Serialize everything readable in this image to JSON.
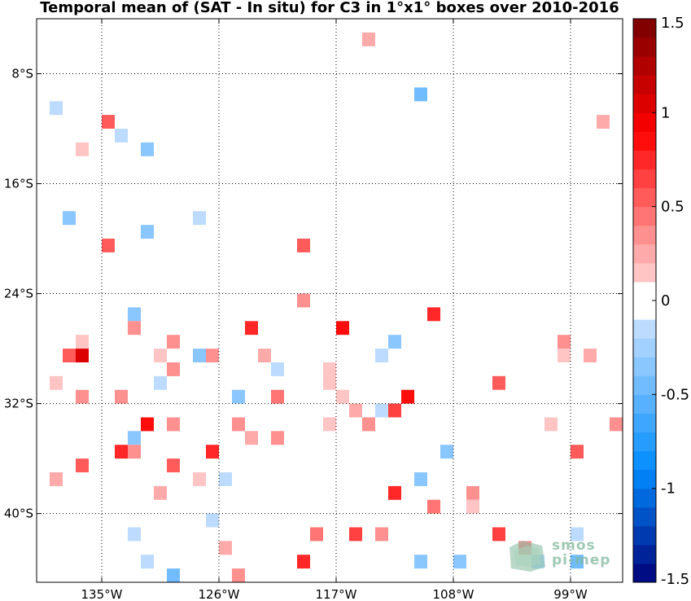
{
  "chart_data": {
    "type": "heatmap",
    "title": "Temporal mean of (SAT - In situ) for C3 in 1°x1° boxes over 2010-2016",
    "xlim": [
      -140,
      -95
    ],
    "ylim": [
      -45,
      -4
    ],
    "x_ticks": [
      -135,
      -126,
      -117,
      -108,
      -99
    ],
    "x_tick_labels": [
      "135°W",
      "126°W",
      "117°W",
      "108°W",
      "99°W"
    ],
    "y_ticks": [
      -8,
      -16,
      -24,
      -32,
      -40
    ],
    "y_tick_labels": [
      "8°S",
      "16°S",
      "24°S",
      "32°S",
      "40°S"
    ],
    "grid": true,
    "colorbar": {
      "min": -1.5,
      "max": 1.5,
      "levels": 30,
      "ticks": [
        1.5,
        1,
        0.5,
        0,
        -0.5,
        -1,
        -1.5
      ],
      "tick_labels": [
        "1.5",
        "1",
        "0.5",
        "0",
        "-0.5",
        "-1",
        "-1.5"
      ]
    },
    "cells": [
      {
        "lon": -114.5,
        "lat": -5.5,
        "v": 0.25
      },
      {
        "lon": -110.5,
        "lat": -9.5,
        "v": -0.45
      },
      {
        "lon": -138.5,
        "lat": -10.5,
        "v": -0.1
      },
      {
        "lon": -96.5,
        "lat": -11.5,
        "v": 0.2
      },
      {
        "lon": -134.5,
        "lat": -11.5,
        "v": 0.55
      },
      {
        "lon": -133.5,
        "lat": -12.5,
        "v": -0.1
      },
      {
        "lon": -136.5,
        "lat": -13.5,
        "v": 0.15
      },
      {
        "lon": -131.5,
        "lat": -13.5,
        "v": -0.3
      },
      {
        "lon": -137.5,
        "lat": -18.5,
        "v": -0.35
      },
      {
        "lon": -127.5,
        "lat": -18.5,
        "v": -0.2
      },
      {
        "lon": -131.5,
        "lat": -19.5,
        "v": -0.3
      },
      {
        "lon": -134.5,
        "lat": -20.5,
        "v": 0.55
      },
      {
        "lon": -119.5,
        "lat": -20.5,
        "v": 0.55
      },
      {
        "lon": -119.5,
        "lat": -24.5,
        "v": 0.3
      },
      {
        "lon": -132.5,
        "lat": -25.5,
        "v": -0.3
      },
      {
        "lon": -109.5,
        "lat": -25.5,
        "v": 0.75
      },
      {
        "lon": -132.5,
        "lat": -26.5,
        "v": 0.3
      },
      {
        "lon": -123.5,
        "lat": -26.5,
        "v": 0.7
      },
      {
        "lon": -116.5,
        "lat": -26.5,
        "v": 0.85
      },
      {
        "lon": -136.5,
        "lat": -27.5,
        "v": 0.15
      },
      {
        "lon": -129.5,
        "lat": -27.5,
        "v": 0.35
      },
      {
        "lon": -112.5,
        "lat": -27.5,
        "v": -0.3
      },
      {
        "lon": -99.5,
        "lat": -27.5,
        "v": 0.35
      },
      {
        "lon": -137.5,
        "lat": -28.5,
        "v": 0.5
      },
      {
        "lon": -136.5,
        "lat": -28.5,
        "v": 1.0
      },
      {
        "lon": -130.5,
        "lat": -28.5,
        "v": 0.15
      },
      {
        "lon": -127.5,
        "lat": -28.5,
        "v": -0.3
      },
      {
        "lon": -126.5,
        "lat": -28.5,
        "v": 0.3
      },
      {
        "lon": -122.5,
        "lat": -28.5,
        "v": 0.2
      },
      {
        "lon": -113.5,
        "lat": -28.5,
        "v": -0.1
      },
      {
        "lon": -99.5,
        "lat": -28.5,
        "v": 0.15
      },
      {
        "lon": -97.5,
        "lat": -28.5,
        "v": 0.2
      },
      {
        "lon": -129.5,
        "lat": -29.5,
        "v": 0.4
      },
      {
        "lon": -121.5,
        "lat": -29.5,
        "v": -0.15
      },
      {
        "lon": -117.5,
        "lat": -29.5,
        "v": 0.15
      },
      {
        "lon": -138.5,
        "lat": -30.5,
        "v": 0.15
      },
      {
        "lon": -130.5,
        "lat": -30.5,
        "v": -0.1
      },
      {
        "lon": -117.5,
        "lat": -30.5,
        "v": 0.15
      },
      {
        "lon": -104.5,
        "lat": -30.5,
        "v": 0.5
      },
      {
        "lon": -136.5,
        "lat": -31.5,
        "v": 0.4
      },
      {
        "lon": -133.5,
        "lat": -31.5,
        "v": 0.3
      },
      {
        "lon": -124.5,
        "lat": -31.5,
        "v": -0.3
      },
      {
        "lon": -121.5,
        "lat": -31.5,
        "v": 0.45
      },
      {
        "lon": -116.5,
        "lat": -31.5,
        "v": 0.15
      },
      {
        "lon": -111.5,
        "lat": -31.5,
        "v": 0.85
      },
      {
        "lon": -115.5,
        "lat": -32.5,
        "v": 0.2
      },
      {
        "lon": -113.5,
        "lat": -32.5,
        "v": -0.15
      },
      {
        "lon": -112.5,
        "lat": -32.5,
        "v": 0.65
      },
      {
        "lon": -131.5,
        "lat": -33.5,
        "v": 0.85
      },
      {
        "lon": -129.5,
        "lat": -33.5,
        "v": 0.35
      },
      {
        "lon": -124.5,
        "lat": -33.5,
        "v": 0.3
      },
      {
        "lon": -117.5,
        "lat": -33.5,
        "v": 0.15
      },
      {
        "lon": -114.5,
        "lat": -33.5,
        "v": 0.3
      },
      {
        "lon": -100.5,
        "lat": -33.5,
        "v": 0.15
      },
      {
        "lon": -95.5,
        "lat": -33.5,
        "v": 0.4
      },
      {
        "lon": -132.5,
        "lat": -34.5,
        "v": -0.35
      },
      {
        "lon": -123.5,
        "lat": -34.5,
        "v": 0.2
      },
      {
        "lon": -121.5,
        "lat": -34.5,
        "v": 0.35
      },
      {
        "lon": -133.5,
        "lat": -35.5,
        "v": 0.7
      },
      {
        "lon": -132.5,
        "lat": -35.5,
        "v": 0.35
      },
      {
        "lon": -126.5,
        "lat": -35.5,
        "v": 0.75
      },
      {
        "lon": -108.5,
        "lat": -35.5,
        "v": -0.35
      },
      {
        "lon": -98.5,
        "lat": -35.5,
        "v": 0.55
      },
      {
        "lon": -136.5,
        "lat": -36.5,
        "v": 0.55
      },
      {
        "lon": -129.5,
        "lat": -36.5,
        "v": 0.55
      },
      {
        "lon": -138.5,
        "lat": -37.5,
        "v": 0.2
      },
      {
        "lon": -127.5,
        "lat": -37.5,
        "v": 0.15
      },
      {
        "lon": -125.5,
        "lat": -37.5,
        "v": -0.2
      },
      {
        "lon": -110.5,
        "lat": -37.5,
        "v": -0.3
      },
      {
        "lon": -130.5,
        "lat": -38.5,
        "v": 0.2
      },
      {
        "lon": -112.5,
        "lat": -38.5,
        "v": 0.75
      },
      {
        "lon": -106.5,
        "lat": -38.5,
        "v": 0.35
      },
      {
        "lon": -109.5,
        "lat": -39.5,
        "v": 0.45
      },
      {
        "lon": -106.5,
        "lat": -39.5,
        "v": 0.15
      },
      {
        "lon": -126.5,
        "lat": -40.5,
        "v": -0.15
      },
      {
        "lon": -132.5,
        "lat": -41.5,
        "v": -0.15
      },
      {
        "lon": -118.5,
        "lat": -41.5,
        "v": 0.45
      },
      {
        "lon": -115.5,
        "lat": -41.5,
        "v": 0.6
      },
      {
        "lon": -113.5,
        "lat": -41.5,
        "v": 0.35
      },
      {
        "lon": -104.5,
        "lat": -41.5,
        "v": 0.6
      },
      {
        "lon": -98.5,
        "lat": -41.5,
        "v": -0.15
      },
      {
        "lon": -125.5,
        "lat": -42.5,
        "v": 0.2
      },
      {
        "lon": -102.5,
        "lat": -42.5,
        "v": 0.35
      },
      {
        "lon": -131.5,
        "lat": -43.5,
        "v": -0.2
      },
      {
        "lon": -119.5,
        "lat": -43.5,
        "v": 0.75
      },
      {
        "lon": -110.5,
        "lat": -43.5,
        "v": -0.4
      },
      {
        "lon": -107.5,
        "lat": -43.5,
        "v": -0.4
      },
      {
        "lon": -101.5,
        "lat": -43.5,
        "v": -0.2
      },
      {
        "lon": -98.5,
        "lat": -43.5,
        "v": -0.45
      },
      {
        "lon": -129.5,
        "lat": -44.5,
        "v": -0.45
      },
      {
        "lon": -124.5,
        "lat": -44.5,
        "v": 0.4
      }
    ]
  },
  "logo": {
    "line1": "smos",
    "line2": "pi-mep"
  }
}
